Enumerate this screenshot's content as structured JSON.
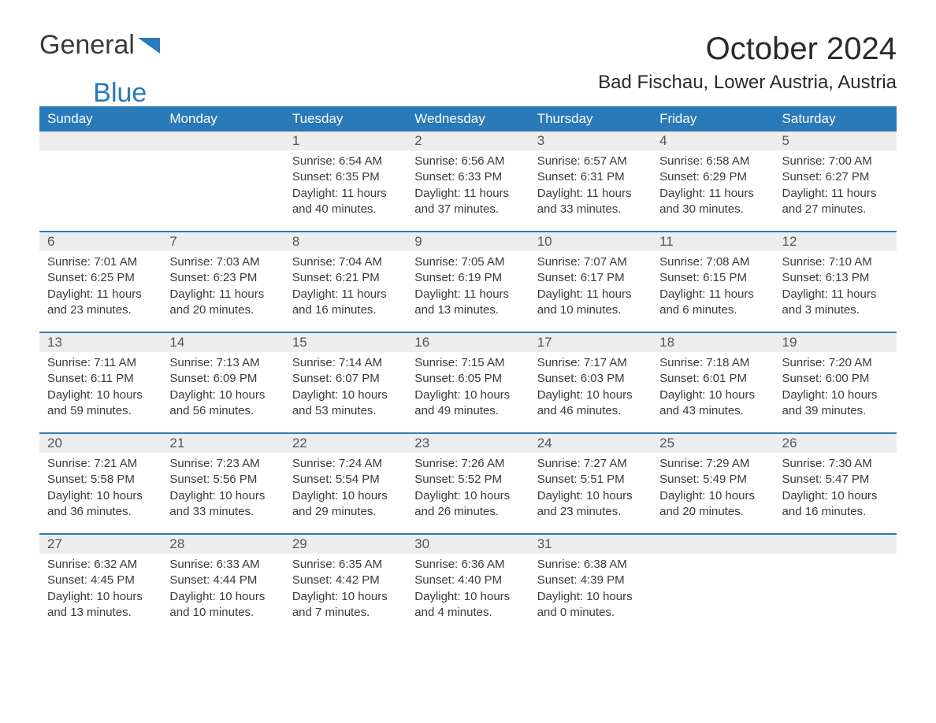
{
  "logo": {
    "text1": "General",
    "text2": "Blue",
    "icon_color": "#2a7ab9"
  },
  "title": "October 2024",
  "location": "Bad Fischau, Lower Austria, Austria",
  "colors": {
    "header_bg": "#2a7ab9",
    "header_text": "#ffffff",
    "daynum_bg": "#ededed",
    "daynum_text": "#555555",
    "body_text": "#3a3a3a",
    "week_border": "#2a7ab9",
    "background": "#ffffff"
  },
  "typography": {
    "title_fontsize": 40,
    "location_fontsize": 24,
    "dayheader_fontsize": 17,
    "daynum_fontsize": 17,
    "body_fontsize": 15,
    "logo_fontsize": 34
  },
  "day_headers": [
    "Sunday",
    "Monday",
    "Tuesday",
    "Wednesday",
    "Thursday",
    "Friday",
    "Saturday"
  ],
  "weeks": [
    [
      {
        "day": "",
        "sunrise": "",
        "sunset": "",
        "daylight": ""
      },
      {
        "day": "",
        "sunrise": "",
        "sunset": "",
        "daylight": ""
      },
      {
        "day": "1",
        "sunrise": "Sunrise: 6:54 AM",
        "sunset": "Sunset: 6:35 PM",
        "daylight": "Daylight: 11 hours and 40 minutes."
      },
      {
        "day": "2",
        "sunrise": "Sunrise: 6:56 AM",
        "sunset": "Sunset: 6:33 PM",
        "daylight": "Daylight: 11 hours and 37 minutes."
      },
      {
        "day": "3",
        "sunrise": "Sunrise: 6:57 AM",
        "sunset": "Sunset: 6:31 PM",
        "daylight": "Daylight: 11 hours and 33 minutes."
      },
      {
        "day": "4",
        "sunrise": "Sunrise: 6:58 AM",
        "sunset": "Sunset: 6:29 PM",
        "daylight": "Daylight: 11 hours and 30 minutes."
      },
      {
        "day": "5",
        "sunrise": "Sunrise: 7:00 AM",
        "sunset": "Sunset: 6:27 PM",
        "daylight": "Daylight: 11 hours and 27 minutes."
      }
    ],
    [
      {
        "day": "6",
        "sunrise": "Sunrise: 7:01 AM",
        "sunset": "Sunset: 6:25 PM",
        "daylight": "Daylight: 11 hours and 23 minutes."
      },
      {
        "day": "7",
        "sunrise": "Sunrise: 7:03 AM",
        "sunset": "Sunset: 6:23 PM",
        "daylight": "Daylight: 11 hours and 20 minutes."
      },
      {
        "day": "8",
        "sunrise": "Sunrise: 7:04 AM",
        "sunset": "Sunset: 6:21 PM",
        "daylight": "Daylight: 11 hours and 16 minutes."
      },
      {
        "day": "9",
        "sunrise": "Sunrise: 7:05 AM",
        "sunset": "Sunset: 6:19 PM",
        "daylight": "Daylight: 11 hours and 13 minutes."
      },
      {
        "day": "10",
        "sunrise": "Sunrise: 7:07 AM",
        "sunset": "Sunset: 6:17 PM",
        "daylight": "Daylight: 11 hours and 10 minutes."
      },
      {
        "day": "11",
        "sunrise": "Sunrise: 7:08 AM",
        "sunset": "Sunset: 6:15 PM",
        "daylight": "Daylight: 11 hours and 6 minutes."
      },
      {
        "day": "12",
        "sunrise": "Sunrise: 7:10 AM",
        "sunset": "Sunset: 6:13 PM",
        "daylight": "Daylight: 11 hours and 3 minutes."
      }
    ],
    [
      {
        "day": "13",
        "sunrise": "Sunrise: 7:11 AM",
        "sunset": "Sunset: 6:11 PM",
        "daylight": "Daylight: 10 hours and 59 minutes."
      },
      {
        "day": "14",
        "sunrise": "Sunrise: 7:13 AM",
        "sunset": "Sunset: 6:09 PM",
        "daylight": "Daylight: 10 hours and 56 minutes."
      },
      {
        "day": "15",
        "sunrise": "Sunrise: 7:14 AM",
        "sunset": "Sunset: 6:07 PM",
        "daylight": "Daylight: 10 hours and 53 minutes."
      },
      {
        "day": "16",
        "sunrise": "Sunrise: 7:15 AM",
        "sunset": "Sunset: 6:05 PM",
        "daylight": "Daylight: 10 hours and 49 minutes."
      },
      {
        "day": "17",
        "sunrise": "Sunrise: 7:17 AM",
        "sunset": "Sunset: 6:03 PM",
        "daylight": "Daylight: 10 hours and 46 minutes."
      },
      {
        "day": "18",
        "sunrise": "Sunrise: 7:18 AM",
        "sunset": "Sunset: 6:01 PM",
        "daylight": "Daylight: 10 hours and 43 minutes."
      },
      {
        "day": "19",
        "sunrise": "Sunrise: 7:20 AM",
        "sunset": "Sunset: 6:00 PM",
        "daylight": "Daylight: 10 hours and 39 minutes."
      }
    ],
    [
      {
        "day": "20",
        "sunrise": "Sunrise: 7:21 AM",
        "sunset": "Sunset: 5:58 PM",
        "daylight": "Daylight: 10 hours and 36 minutes."
      },
      {
        "day": "21",
        "sunrise": "Sunrise: 7:23 AM",
        "sunset": "Sunset: 5:56 PM",
        "daylight": "Daylight: 10 hours and 33 minutes."
      },
      {
        "day": "22",
        "sunrise": "Sunrise: 7:24 AM",
        "sunset": "Sunset: 5:54 PM",
        "daylight": "Daylight: 10 hours and 29 minutes."
      },
      {
        "day": "23",
        "sunrise": "Sunrise: 7:26 AM",
        "sunset": "Sunset: 5:52 PM",
        "daylight": "Daylight: 10 hours and 26 minutes."
      },
      {
        "day": "24",
        "sunrise": "Sunrise: 7:27 AM",
        "sunset": "Sunset: 5:51 PM",
        "daylight": "Daylight: 10 hours and 23 minutes."
      },
      {
        "day": "25",
        "sunrise": "Sunrise: 7:29 AM",
        "sunset": "Sunset: 5:49 PM",
        "daylight": "Daylight: 10 hours and 20 minutes."
      },
      {
        "day": "26",
        "sunrise": "Sunrise: 7:30 AM",
        "sunset": "Sunset: 5:47 PM",
        "daylight": "Daylight: 10 hours and 16 minutes."
      }
    ],
    [
      {
        "day": "27",
        "sunrise": "Sunrise: 6:32 AM",
        "sunset": "Sunset: 4:45 PM",
        "daylight": "Daylight: 10 hours and 13 minutes."
      },
      {
        "day": "28",
        "sunrise": "Sunrise: 6:33 AM",
        "sunset": "Sunset: 4:44 PM",
        "daylight": "Daylight: 10 hours and 10 minutes."
      },
      {
        "day": "29",
        "sunrise": "Sunrise: 6:35 AM",
        "sunset": "Sunset: 4:42 PM",
        "daylight": "Daylight: 10 hours and 7 minutes."
      },
      {
        "day": "30",
        "sunrise": "Sunrise: 6:36 AM",
        "sunset": "Sunset: 4:40 PM",
        "daylight": "Daylight: 10 hours and 4 minutes."
      },
      {
        "day": "31",
        "sunrise": "Sunrise: 6:38 AM",
        "sunset": "Sunset: 4:39 PM",
        "daylight": "Daylight: 10 hours and 0 minutes."
      },
      {
        "day": "",
        "sunrise": "",
        "sunset": "",
        "daylight": ""
      },
      {
        "day": "",
        "sunrise": "",
        "sunset": "",
        "daylight": ""
      }
    ]
  ]
}
